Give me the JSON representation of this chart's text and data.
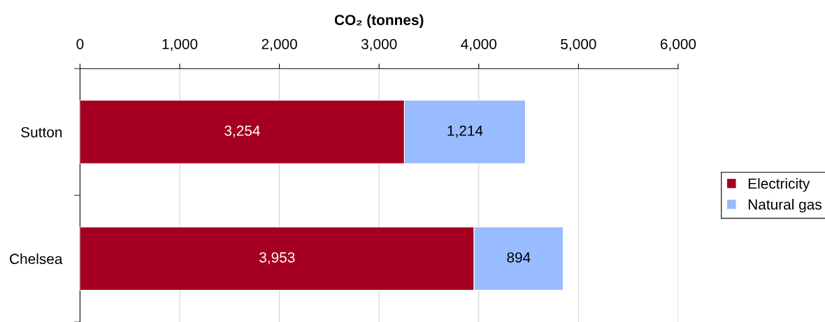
{
  "chart_data": {
    "type": "bar",
    "orientation": "horizontal",
    "stacked": true,
    "xlabel": "CO₂ (tonnes)",
    "categories": [
      "Sutton",
      "Chelsea"
    ],
    "series": [
      {
        "name": "Electricity",
        "color": "#a50021",
        "values": [
          3254,
          3953
        ],
        "value_labels": [
          "3,254",
          "3,953"
        ]
      },
      {
        "name": "Natural gas",
        "color": "#99bbff",
        "values": [
          1214,
          894
        ],
        "value_labels": [
          "1,214",
          "894"
        ]
      }
    ],
    "xlim": [
      0,
      6000
    ],
    "xticks": [
      0,
      {
        "value": 1000,
        "label": "1,000"
      },
      {
        "value": 2000,
        "label": "2,000"
      },
      {
        "value": 3000,
        "label": "3,000"
      },
      {
        "value": 4000,
        "label": "4,000"
      },
      {
        "value": 5000,
        "label": "5,000"
      },
      {
        "value": 6000,
        "label": "6,000"
      }
    ],
    "grid": "x",
    "legend": "right"
  }
}
